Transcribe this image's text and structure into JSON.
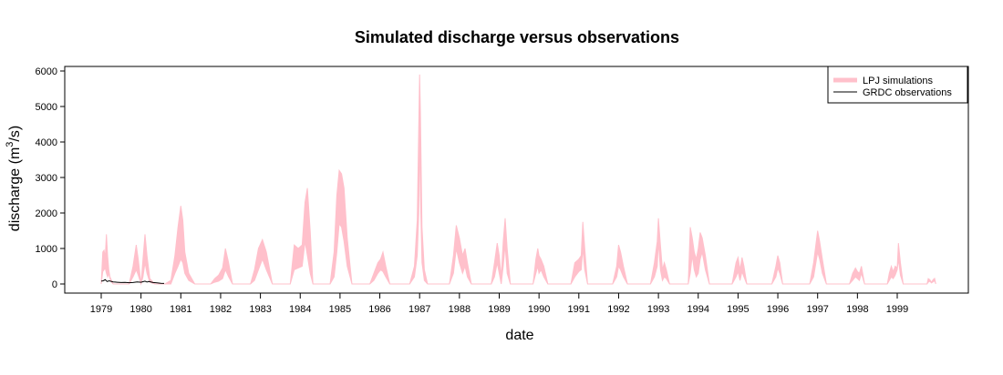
{
  "chart_data": {
    "type": "area",
    "title": "Simulated discharge versus observations",
    "xlabel": "date",
    "ylabel_prefix": "discharge (m",
    "ylabel_sup": "3",
    "ylabel_suffix": "/s)",
    "ylim": [
      0,
      6000
    ],
    "yticks": [
      0,
      1000,
      2000,
      3000,
      4000,
      5000,
      6000
    ],
    "xlim": [
      1979.0,
      2000.0
    ],
    "xticks": [
      "1979",
      "1980",
      "1981",
      "1982",
      "1983",
      "1984",
      "1985",
      "1986",
      "1987",
      "1988",
      "1989",
      "1990",
      "1991",
      "1992",
      "1993",
      "1994",
      "1995",
      "1996",
      "1997",
      "1998",
      "1999"
    ],
    "grid": false,
    "legend_position": "top-right",
    "legend": {
      "entries": [
        {
          "label": "LPJ simulations",
          "color": "#ffc0cb",
          "style": "band"
        },
        {
          "label": "GRDC observations",
          "color": "#000000",
          "style": "line"
        }
      ]
    },
    "series": [
      {
        "name": "LPJ simulations",
        "kind": "band",
        "color": "#ffc0cb",
        "x": [
          1979.0,
          1979.04,
          1979.07,
          1979.1,
          1979.13,
          1979.16,
          1979.19,
          1979.22,
          1979.26,
          1979.3,
          1979.45,
          1979.7,
          1979.8,
          1979.88,
          1979.93,
          1980.0,
          1980.05,
          1980.1,
          1980.15,
          1980.22,
          1980.35,
          1980.6,
          1980.75,
          1980.85,
          1980.93,
          1981.0,
          1981.05,
          1981.1,
          1981.2,
          1981.35,
          1981.75,
          1981.85,
          1981.95,
          1982.05,
          1982.12,
          1982.2,
          1982.3,
          1982.75,
          1982.85,
          1982.95,
          1983.05,
          1983.15,
          1983.3,
          1983.75,
          1983.85,
          1983.95,
          1984.05,
          1984.12,
          1984.18,
          1984.25,
          1984.32,
          1984.75,
          1984.85,
          1984.92,
          1984.98,
          1985.04,
          1985.1,
          1985.18,
          1985.3,
          1985.75,
          1985.85,
          1985.95,
          1986.02,
          1986.08,
          1986.15,
          1986.25,
          1986.75,
          1986.87,
          1986.94,
          1986.98,
          1987.0,
          1987.02,
          1987.06,
          1987.12,
          1987.2,
          1987.75,
          1987.85,
          1987.92,
          1988.0,
          1988.08,
          1988.14,
          1988.2,
          1988.3,
          1988.8,
          1988.88,
          1988.95,
          1989.0,
          1989.05,
          1989.1,
          1989.15,
          1989.2,
          1989.28,
          1989.85,
          1989.92,
          1989.97,
          1990.0,
          1990.05,
          1990.12,
          1990.22,
          1990.8,
          1990.9,
          1991.0,
          1991.06,
          1991.1,
          1991.15,
          1991.22,
          1991.85,
          1991.95,
          1992.0,
          1992.05,
          1992.12,
          1992.22,
          1992.8,
          1992.9,
          1992.97,
          1993.0,
          1993.05,
          1993.1,
          1993.15,
          1993.2,
          1993.28,
          1993.75,
          1993.8,
          1993.85,
          1993.9,
          1993.95,
          1994.0,
          1994.05,
          1994.1,
          1994.18,
          1994.28,
          1994.85,
          1994.95,
          1995.0,
          1995.05,
          1995.1,
          1995.15,
          1995.22,
          1995.85,
          1995.95,
          1996.0,
          1996.05,
          1996.12,
          1996.8,
          1996.9,
          1997.0,
          1997.05,
          1997.12,
          1997.22,
          1997.8,
          1997.88,
          1997.95,
          1998.0,
          1998.05,
          1998.1,
          1998.18,
          1998.75,
          1998.8,
          1998.85,
          1998.9,
          1998.95,
          1999.0,
          1999.03,
          1999.08,
          1999.15,
          1999.75,
          1999.78,
          1999.82,
          1999.86,
          1999.9,
          1999.94,
          1999.97
        ],
        "lower": [
          0,
          350,
          400,
          450,
          300,
          200,
          300,
          150,
          50,
          0,
          0,
          0,
          200,
          400,
          250,
          0,
          200,
          600,
          300,
          50,
          0,
          0,
          0,
          300,
          500,
          700,
          600,
          300,
          100,
          0,
          0,
          50,
          80,
          150,
          400,
          200,
          0,
          0,
          100,
          400,
          700,
          400,
          0,
          0,
          400,
          450,
          500,
          1200,
          800,
          300,
          0,
          0,
          200,
          900,
          1700,
          1600,
          1200,
          500,
          0,
          0,
          100,
          300,
          400,
          350,
          200,
          0,
          0,
          200,
          800,
          2000,
          4500,
          2500,
          600,
          100,
          0,
          0,
          300,
          1000,
          600,
          300,
          500,
          200,
          0,
          0,
          200,
          600,
          300,
          0,
          500,
          1100,
          300,
          0,
          0,
          300,
          500,
          300,
          400,
          200,
          0,
          0,
          200,
          350,
          400,
          1000,
          400,
          0,
          0,
          200,
          500,
          400,
          200,
          0,
          0,
          200,
          500,
          1200,
          400,
          100,
          200,
          150,
          0,
          0,
          300,
          800,
          400,
          200,
          300,
          700,
          900,
          400,
          0,
          0,
          200,
          350,
          100,
          350,
          200,
          0,
          0,
          200,
          450,
          300,
          0,
          0,
          200,
          900,
          700,
          300,
          0,
          0,
          100,
          200,
          150,
          100,
          300,
          0,
          0,
          100,
          200,
          150,
          250,
          400,
          700,
          250,
          0,
          0,
          50,
          80,
          30,
          60,
          90,
          0
        ],
        "upper": [
          0,
          900,
          950,
          750,
          1400,
          800,
          400,
          200,
          100,
          0,
          0,
          0,
          500,
          1100,
          700,
          0,
          700,
          1400,
          800,
          150,
          0,
          0,
          100,
          800,
          1600,
          2200,
          1800,
          900,
          300,
          0,
          0,
          150,
          250,
          450,
          1000,
          600,
          0,
          0,
          400,
          1000,
          1250,
          900,
          0,
          0,
          1100,
          1000,
          1100,
          2300,
          2700,
          1500,
          0,
          0,
          900,
          2500,
          3200,
          3100,
          2700,
          1300,
          0,
          0,
          300,
          600,
          700,
          900,
          500,
          0,
          0,
          500,
          1800,
          4500,
          5900,
          4800,
          1600,
          400,
          0,
          0,
          800,
          1650,
          1300,
          800,
          1000,
          600,
          0,
          0,
          600,
          1150,
          800,
          200,
          1200,
          1850,
          1000,
          0,
          0,
          700,
          1000,
          800,
          700,
          500,
          0,
          0,
          600,
          700,
          800,
          1750,
          1000,
          0,
          0,
          500,
          1100,
          900,
          500,
          0,
          0,
          600,
          1200,
          1850,
          1100,
          400,
          600,
          400,
          0,
          0,
          1600,
          1300,
          900,
          700,
          1000,
          1450,
          1300,
          800,
          0,
          0,
          600,
          750,
          400,
          750,
          500,
          0,
          0,
          500,
          800,
          600,
          0,
          0,
          600,
          1500,
          1200,
          700,
          0,
          0,
          300,
          450,
          350,
          300,
          500,
          0,
          0,
          300,
          500,
          350,
          500,
          450,
          1150,
          600,
          0,
          0,
          150,
          120,
          50,
          120,
          160,
          0
        ]
      },
      {
        "name": "GRDC observations",
        "kind": "line",
        "color": "#000000",
        "x": [
          1979.0,
          1979.05,
          1979.1,
          1979.15,
          1979.2,
          1979.3,
          1979.4,
          1979.5,
          1979.6,
          1979.7,
          1979.8,
          1979.9,
          1980.0,
          1980.05,
          1980.1,
          1980.15,
          1980.2,
          1980.3,
          1980.4,
          1980.5,
          1980.58
        ],
        "y": [
          80,
          90,
          120,
          70,
          90,
          60,
          50,
          40,
          45,
          35,
          40,
          60,
          50,
          65,
          80,
          55,
          70,
          40,
          30,
          20,
          15
        ]
      }
    ]
  }
}
